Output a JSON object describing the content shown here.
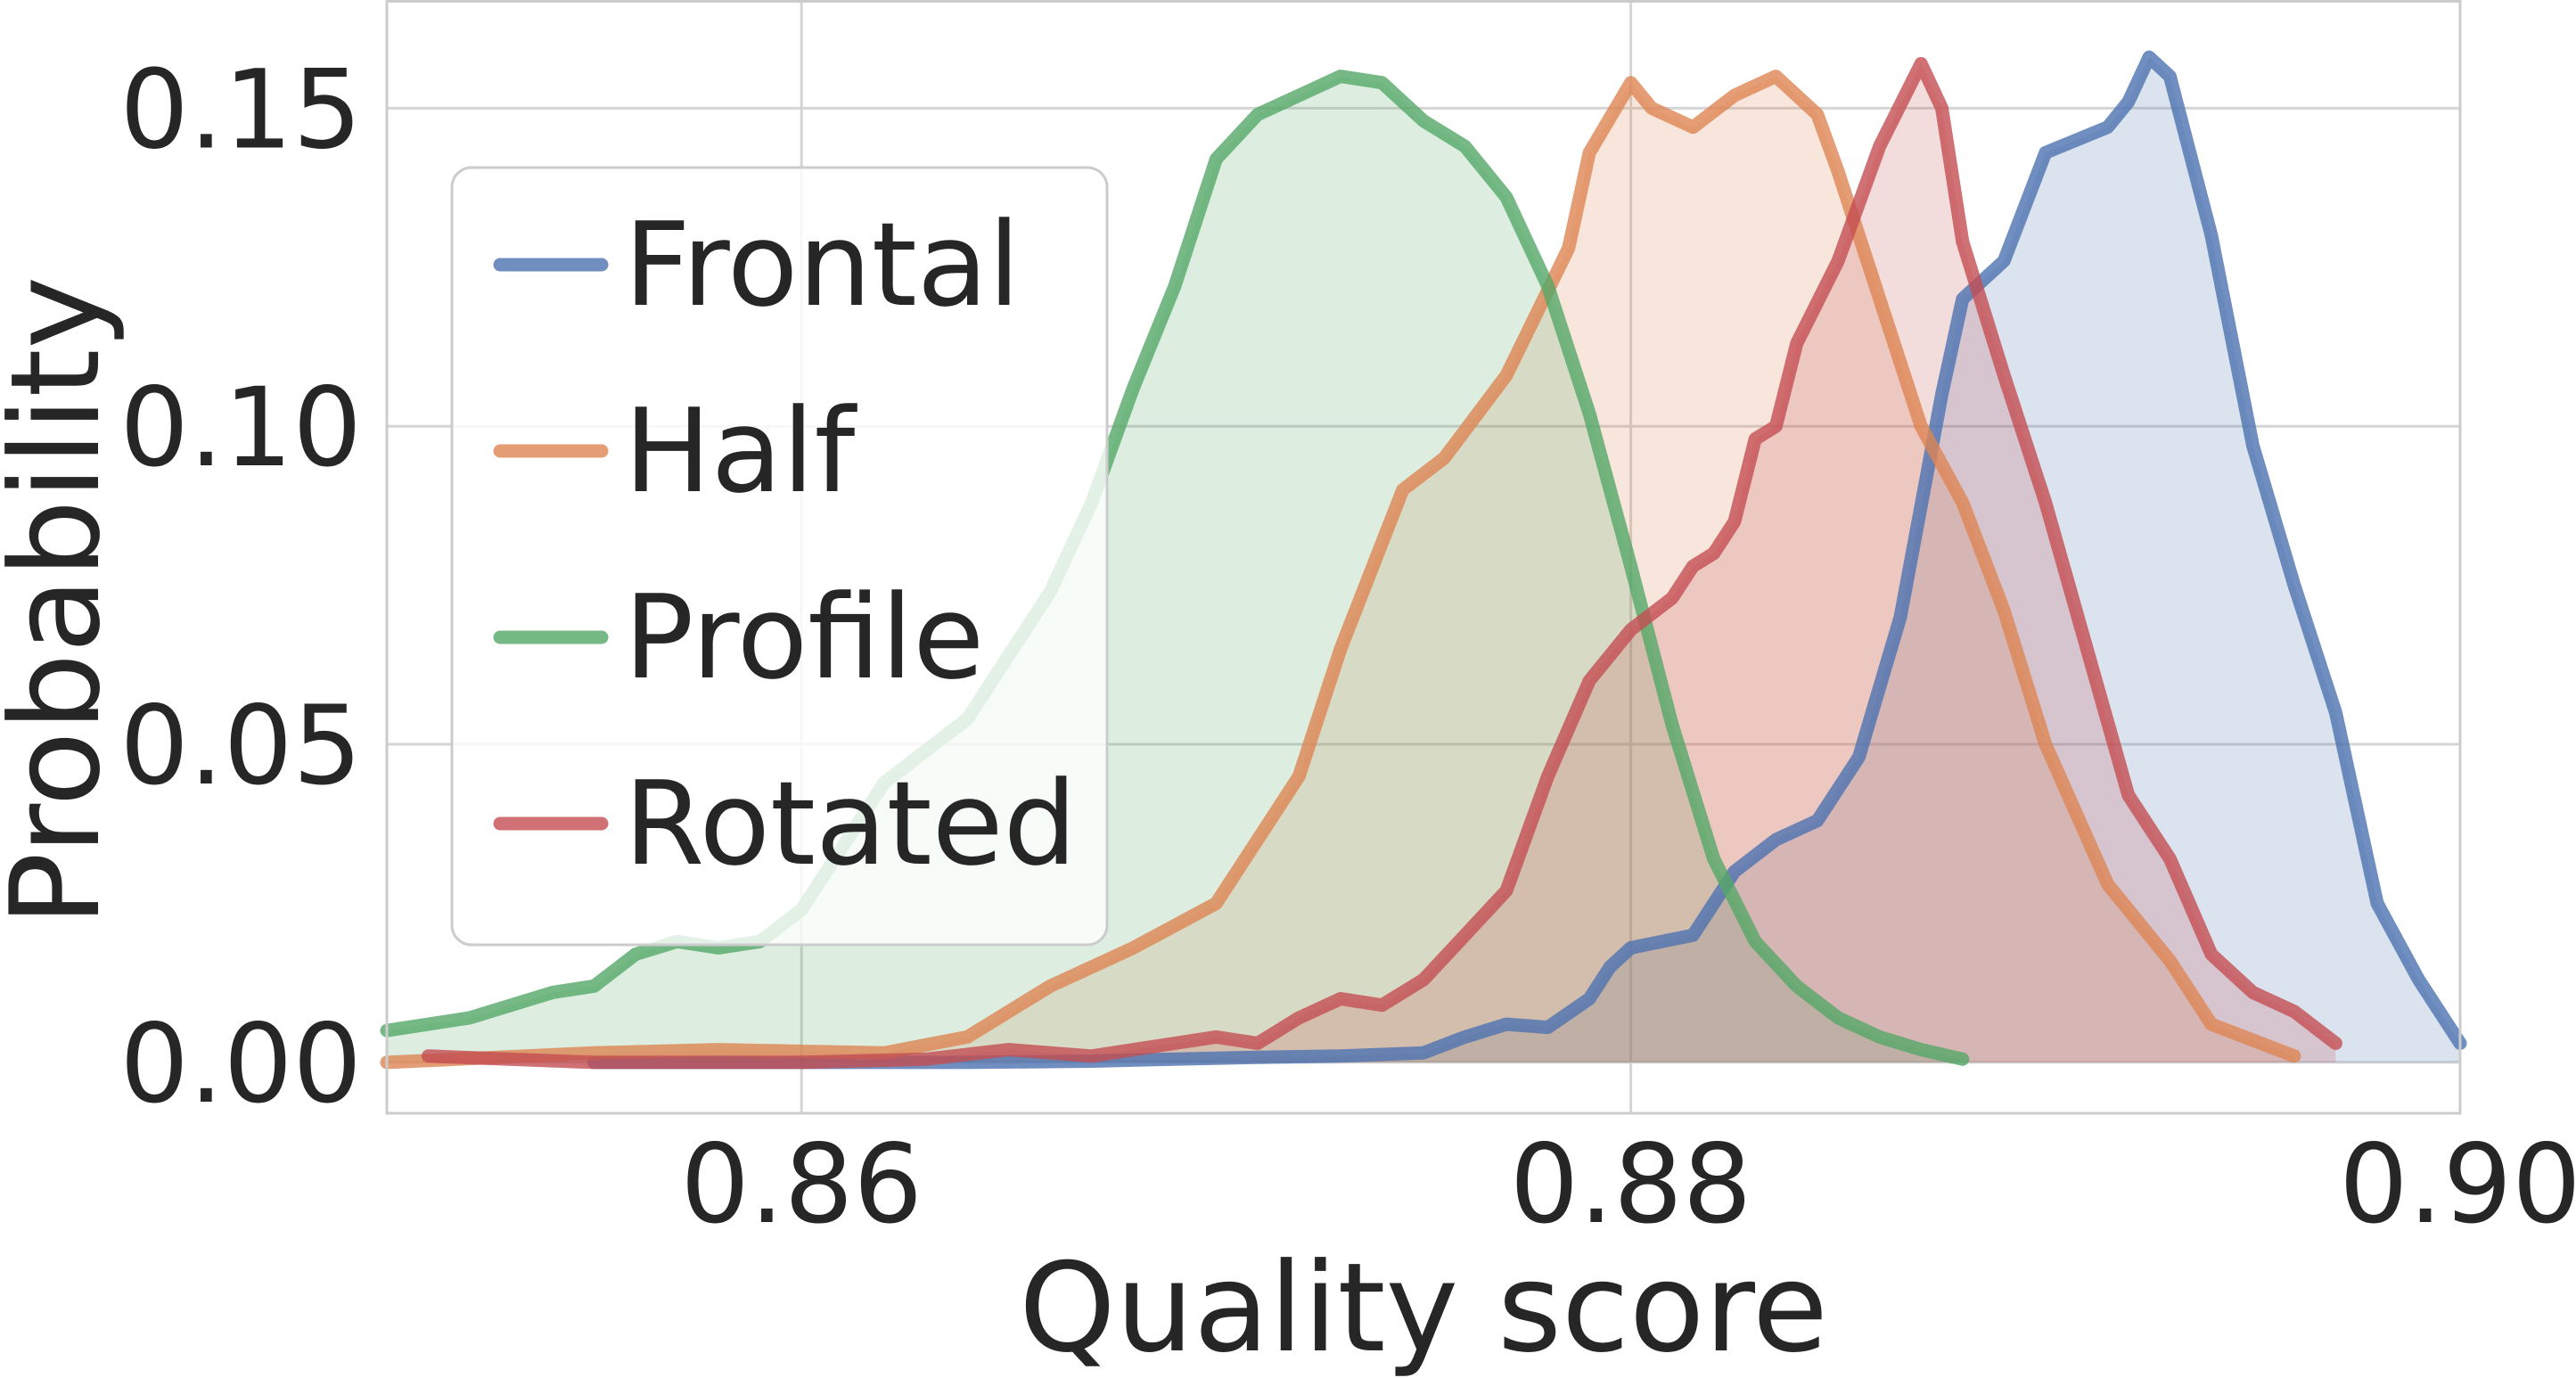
{
  "chart_data": {
    "type": "area",
    "title": "",
    "xlabel": "Quality score",
    "ylabel": "Probability",
    "xlim": [
      0.85,
      0.9
    ],
    "ylim": [
      -0.008,
      0.167
    ],
    "xticks": [
      0.86,
      0.88,
      0.9
    ],
    "xtick_labels": [
      "0.86",
      "0.88",
      "0.90"
    ],
    "yticks": [
      0.0,
      0.05,
      0.1,
      0.15
    ],
    "ytick_labels": [
      "0.00",
      "0.05",
      "0.10",
      "0.15"
    ],
    "grid": true,
    "legend_position": "upper-left",
    "series": [
      {
        "name": "Frontal",
        "color": "#4c72b0",
        "x": [
          0.855,
          0.86,
          0.864,
          0.867,
          0.869,
          0.871,
          0.873,
          0.875,
          0.876,
          0.877,
          0.878,
          0.879,
          0.8795,
          0.88,
          0.8815,
          0.8825,
          0.8835,
          0.8845,
          0.8855,
          0.8865,
          0.8875,
          0.888,
          0.889,
          0.89,
          0.8915,
          0.892,
          0.8925,
          0.893,
          0.894,
          0.895,
          0.896,
          0.897,
          0.898,
          0.899,
          0.9
        ],
        "values": [
          0.0,
          0.0,
          0.0,
          0.0002,
          0.0005,
          0.0008,
          0.001,
          0.0015,
          0.004,
          0.006,
          0.0055,
          0.01,
          0.015,
          0.018,
          0.02,
          0.03,
          0.035,
          0.038,
          0.048,
          0.07,
          0.105,
          0.12,
          0.126,
          0.143,
          0.147,
          0.151,
          0.158,
          0.155,
          0.13,
          0.097,
          0.075,
          0.055,
          0.025,
          0.013,
          0.003
        ]
      },
      {
        "name": "Half",
        "color": "#dd8452",
        "x": [
          0.85,
          0.855,
          0.858,
          0.862,
          0.864,
          0.866,
          0.868,
          0.87,
          0.872,
          0.873,
          0.8745,
          0.8755,
          0.877,
          0.8785,
          0.879,
          0.88,
          0.8805,
          0.8815,
          0.8825,
          0.8835,
          0.8845,
          0.885,
          0.886,
          0.887,
          0.888,
          0.889,
          0.89,
          0.8915,
          0.893,
          0.894,
          0.896
        ],
        "values": [
          0.0,
          0.0015,
          0.002,
          0.0015,
          0.004,
          0.012,
          0.018,
          0.025,
          0.045,
          0.065,
          0.09,
          0.095,
          0.108,
          0.128,
          0.143,
          0.154,
          0.15,
          0.147,
          0.152,
          0.155,
          0.149,
          0.14,
          0.12,
          0.1,
          0.088,
          0.071,
          0.05,
          0.028,
          0.016,
          0.006,
          0.001
        ]
      },
      {
        "name": "Profile",
        "color": "#55a868",
        "x": [
          0.85,
          0.852,
          0.854,
          0.855,
          0.856,
          0.857,
          0.858,
          0.859,
          0.86,
          0.861,
          0.862,
          0.863,
          0.864,
          0.865,
          0.866,
          0.867,
          0.868,
          0.869,
          0.87,
          0.871,
          0.872,
          0.873,
          0.874,
          0.875,
          0.876,
          0.877,
          0.878,
          0.879,
          0.88,
          0.881,
          0.882,
          0.883,
          0.884,
          0.885,
          0.886,
          0.887,
          0.888
        ],
        "values": [
          0.005,
          0.007,
          0.011,
          0.012,
          0.017,
          0.019,
          0.018,
          0.019,
          0.024,
          0.034,
          0.044,
          0.049,
          0.054,
          0.064,
          0.074,
          0.088,
          0.106,
          0.122,
          0.142,
          0.149,
          0.152,
          0.155,
          0.154,
          0.148,
          0.144,
          0.136,
          0.122,
          0.102,
          0.078,
          0.053,
          0.032,
          0.019,
          0.012,
          0.007,
          0.004,
          0.002,
          0.0005
        ]
      },
      {
        "name": "Rotated",
        "color": "#c44e52",
        "x": [
          0.851,
          0.855,
          0.86,
          0.863,
          0.865,
          0.867,
          0.869,
          0.87,
          0.871,
          0.872,
          0.873,
          0.874,
          0.875,
          0.876,
          0.877,
          0.878,
          0.879,
          0.88,
          0.881,
          0.8815,
          0.882,
          0.8825,
          0.883,
          0.8835,
          0.884,
          0.885,
          0.886,
          0.887,
          0.8875,
          0.888,
          0.889,
          0.89,
          0.891,
          0.892,
          0.893,
          0.894,
          0.895,
          0.896,
          0.897
        ],
        "values": [
          0.001,
          0.0,
          0.0,
          0.0005,
          0.002,
          0.001,
          0.003,
          0.004,
          0.003,
          0.007,
          0.01,
          0.009,
          0.013,
          0.02,
          0.027,
          0.045,
          0.06,
          0.068,
          0.073,
          0.078,
          0.08,
          0.085,
          0.098,
          0.1,
          0.113,
          0.126,
          0.144,
          0.157,
          0.15,
          0.129,
          0.108,
          0.088,
          0.065,
          0.042,
          0.032,
          0.017,
          0.011,
          0.008,
          0.003
        ]
      }
    ]
  }
}
